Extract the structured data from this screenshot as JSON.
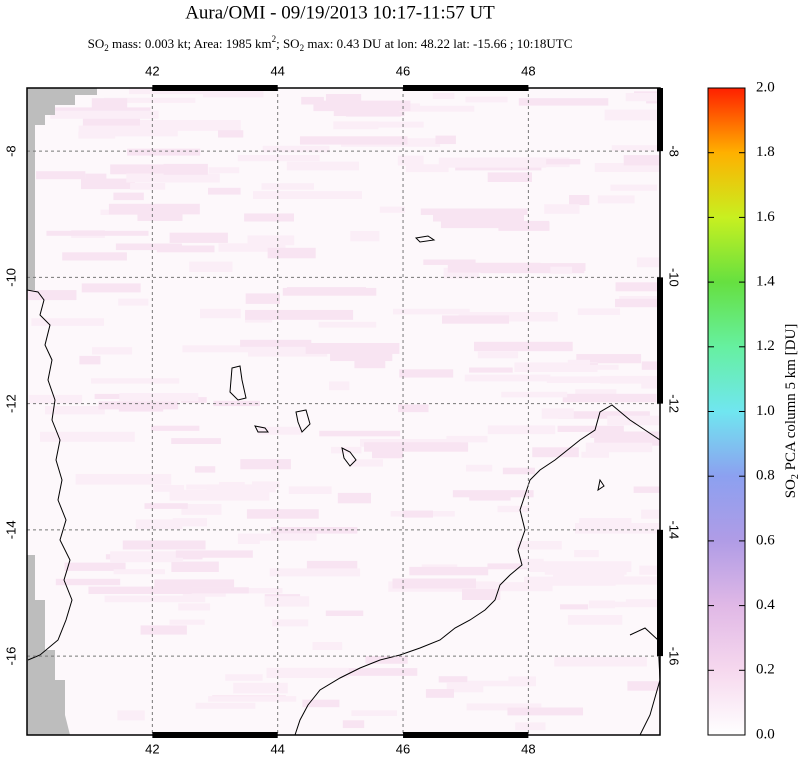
{
  "chart_data": {
    "type": "map",
    "title": "Aura/OMI - 09/19/2013 10:17-11:57 UT",
    "subtitle_parts": [
      "SO",
      "2",
      " mass: 0.003 kt; Area: 1985 km",
      "2",
      "; SO",
      "2",
      " max: 0.43 DU at lon: 48.22 lat: -15.66 ; 10:18UTC"
    ],
    "xlim": [
      40,
      50.1
    ],
    "ylim": [
      -17.25,
      -7
    ],
    "xticks": [
      42,
      44,
      46,
      48
    ],
    "yticks": [
      -8,
      -10,
      -12,
      -14,
      -16
    ],
    "grid": true,
    "colorbar": {
      "label_parts": [
        "SO",
        "2",
        " PCA column 5 km [DU]"
      ],
      "lim": [
        0,
        2
      ],
      "ticks": [
        {
          "value": 0,
          "label": "0.0"
        },
        0.2,
        0.4,
        0.6,
        0.8,
        {
          "value": 1,
          "label": "1.0"
        },
        1.2,
        1.4,
        1.6,
        1.8,
        {
          "value": 2,
          "label": "2.0"
        }
      ]
    }
  }
}
